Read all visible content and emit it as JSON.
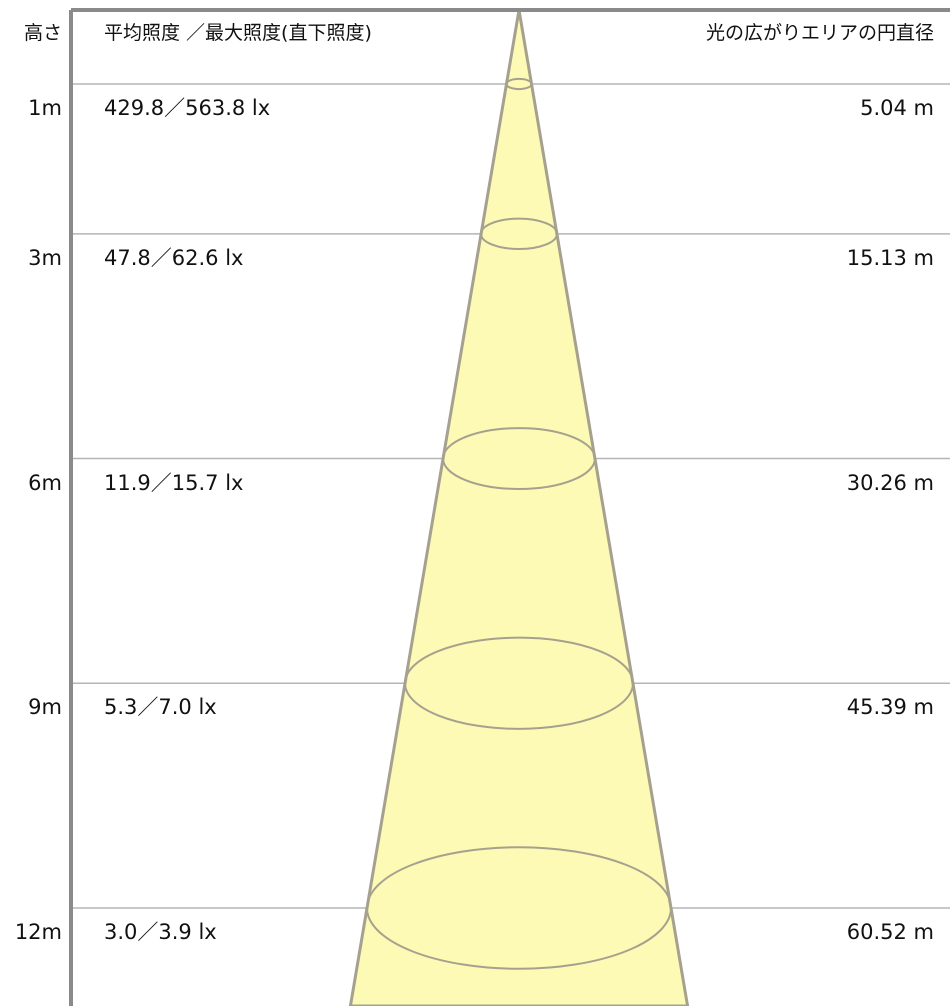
{
  "header": {
    "height_label": "高さ",
    "illuminance_label": "平均照度 ／最大照度(直下照度)",
    "diameter_label": "光の広がりエリアの円直径"
  },
  "rows": [
    {
      "height": "1m",
      "height_m": 1,
      "illuminance": "429.8／563.8 lx",
      "diameter": "5.04 m",
      "diameter_m": 5.04
    },
    {
      "height": "3m",
      "height_m": 3,
      "illuminance": "47.8／62.6 lx",
      "diameter": "15.13 m",
      "diameter_m": 15.13
    },
    {
      "height": "6m",
      "height_m": 6,
      "illuminance": "11.9／15.7 lx",
      "diameter": "30.26 m",
      "diameter_m": 30.26
    },
    {
      "height": "9m",
      "height_m": 9,
      "illuminance": "5.3／7.0 lx",
      "diameter": "45.39 m",
      "diameter_m": 45.39
    },
    {
      "height": "12m",
      "height_m": 12,
      "illuminance": "3.0／3.9 lx",
      "diameter": "60.52 m",
      "diameter_m": 60.52
    }
  ],
  "colors": {
    "beam_fill": "#FCFAB4",
    "beam_stroke": "#A6A18E",
    "axis": "#8A8A8A",
    "grid": "#B5B5B5"
  }
}
